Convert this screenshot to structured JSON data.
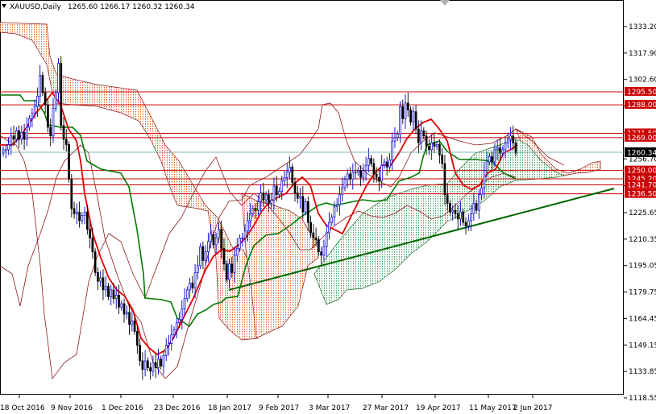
{
  "header": {
    "symbol": "XAUUSD,Daily",
    "ohlc": "1265.60 1266.17 1260.32 1260.34"
  },
  "chart_data": {
    "type": "candlestick",
    "symbol": "XAUUSD",
    "timeframe": "Daily",
    "last_open": 1265.6,
    "last_high": 1266.17,
    "last_low": 1260.32,
    "last_close": 1260.34,
    "current_price_label": "1260.34",
    "ylim": [
      1118.55,
      1347.0
    ],
    "y_ticks": [
      "1333.20",
      "1317.90",
      "1302.60",
      "1287.30",
      "1271.90",
      "1256.70",
      "1241.30",
      "1225.65",
      "1210.35",
      "1195.05",
      "1179.75",
      "1164.45",
      "1149.15",
      "1133.85",
      "1118.55"
    ],
    "x_ticks": [
      "18 Oct 2016",
      "9 Nov 2016",
      "1 Dec 2016",
      "23 Dec 2016",
      "18 Jan 2017",
      "9 Feb 2017",
      "3 Mar 2017",
      "27 Mar 2017",
      "19 Apr 2017",
      "11 May 2017",
      "2 Jun 2017"
    ],
    "horizontal_levels": [
      {
        "value": 1295.5,
        "label": "1295.50",
        "color": "#cc0000"
      },
      {
        "value": 1288.0,
        "label": "1288.00",
        "color": "#cc0000"
      },
      {
        "value": 1271.5,
        "label": "1271.50",
        "color": "#cc0000"
      },
      {
        "value": 1269.0,
        "label": "1269.00",
        "color": "#cc0000"
      },
      {
        "value": 1250.0,
        "label": "1250.00",
        "color": "#cc0000"
      },
      {
        "value": 1245.2,
        "label": "1245.20",
        "color": "#cc0000"
      },
      {
        "value": 1241.7,
        "label": "1241.70",
        "color": "#cc0000"
      },
      {
        "value": 1236.5,
        "label": "1236.50",
        "color": "#cc0000"
      }
    ],
    "trendline": {
      "from": [
        "18 Jan 2017",
        1181
      ],
      "to": [
        "after 2 Jun 2017",
        1237.5
      ],
      "color": "#006600"
    },
    "candle_closes": [
      1262,
      1262,
      1265,
      1270,
      1268,
      1273,
      1268,
      1272,
      1268,
      1275,
      1280,
      1283,
      1287,
      1293,
      1305,
      1295,
      1288,
      1275,
      1270,
      1286,
      1295,
      1312,
      1276,
      1268,
      1265,
      1245,
      1228,
      1225,
      1226,
      1221,
      1224,
      1226,
      1216,
      1211,
      1203,
      1191,
      1186,
      1188,
      1181,
      1183,
      1177,
      1181,
      1176,
      1178,
      1171,
      1173,
      1167,
      1168,
      1161,
      1163,
      1157,
      1149,
      1140,
      1135,
      1140,
      1136,
      1134,
      1139,
      1136,
      1141,
      1137,
      1143,
      1149,
      1150,
      1155,
      1158,
      1162,
      1164,
      1170,
      1176,
      1181,
      1185,
      1182,
      1191,
      1195,
      1206,
      1198,
      1203,
      1209,
      1213,
      1207,
      1211,
      1216,
      1205,
      1196,
      1187,
      1196,
      1191,
      1201,
      1205,
      1211,
      1211,
      1215,
      1221,
      1225,
      1228,
      1227,
      1232,
      1237,
      1233,
      1236,
      1231,
      1233,
      1241,
      1236,
      1238,
      1244,
      1246,
      1249,
      1252,
      1243,
      1237,
      1234,
      1235,
      1226,
      1232,
      1220,
      1214,
      1211,
      1210,
      1203,
      1201,
      1206,
      1214,
      1220,
      1223,
      1229,
      1230,
      1236,
      1240,
      1245,
      1248,
      1245,
      1249,
      1249,
      1250,
      1246,
      1250,
      1253,
      1257,
      1254,
      1248,
      1246,
      1244,
      1253,
      1255,
      1252,
      1256,
      1267,
      1269,
      1271,
      1287,
      1280,
      1289,
      1285,
      1278,
      1284,
      1274,
      1266,
      1273,
      1270,
      1264,
      1262,
      1266,
      1264,
      1265,
      1259,
      1254,
      1236,
      1231,
      1226,
      1227,
      1225,
      1222,
      1226,
      1220,
      1218,
      1221,
      1225,
      1231,
      1227,
      1236,
      1240,
      1250,
      1255,
      1258,
      1255,
      1262,
      1263,
      1260,
      1262,
      1266,
      1268,
      1270,
      1266,
      1260
    ]
  },
  "labels": {
    "last_price_box": "1260.34"
  }
}
